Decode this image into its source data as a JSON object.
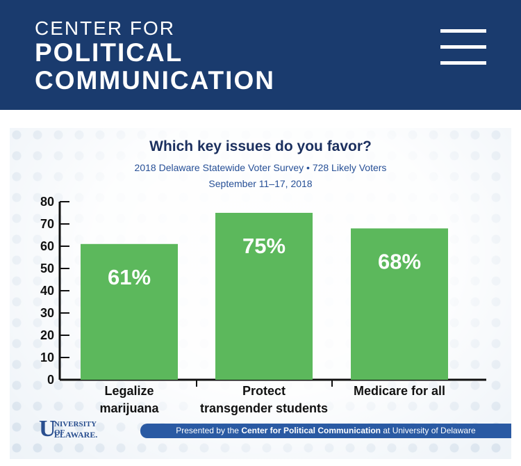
{
  "header": {
    "brand_line1": "CENTER FOR",
    "brand_line2": "POLITICAL",
    "brand_line3": "COMMUNICATION",
    "background_color": "#1a3b6e",
    "menu_icon": "hamburger-menu-icon"
  },
  "graphic": {
    "title": "Which key issues do you favor?",
    "subtitle1": "2018 Delaware Statewide Voter Survey • 728 Likely Voters",
    "subtitle2": "September 11–17, 2018",
    "footer": {
      "prefix": "Presented by the ",
      "org": "Center for Political Communication",
      "suffix": " at University of Delaware",
      "background_color": "#2a5aa3"
    },
    "logo": {
      "mark": "U",
      "line1": "NIVERSITY OF",
      "line2": "ELAWARE."
    }
  },
  "chart_data": {
    "type": "bar",
    "title": "Which key issues do you favor?",
    "categories": [
      [
        "Legalize",
        "marijuana"
      ],
      [
        "Protect",
        "transgender students"
      ],
      [
        "Medicare for all"
      ]
    ],
    "values": [
      61,
      75,
      68
    ],
    "data_labels": [
      "61%",
      "75%",
      "68%"
    ],
    "yticks": [
      0,
      10,
      20,
      30,
      40,
      50,
      60,
      70,
      80
    ],
    "ylim": [
      0,
      80
    ],
    "xlabel": "",
    "ylabel": "",
    "bar_color": "#5cb85c",
    "grid": false
  }
}
